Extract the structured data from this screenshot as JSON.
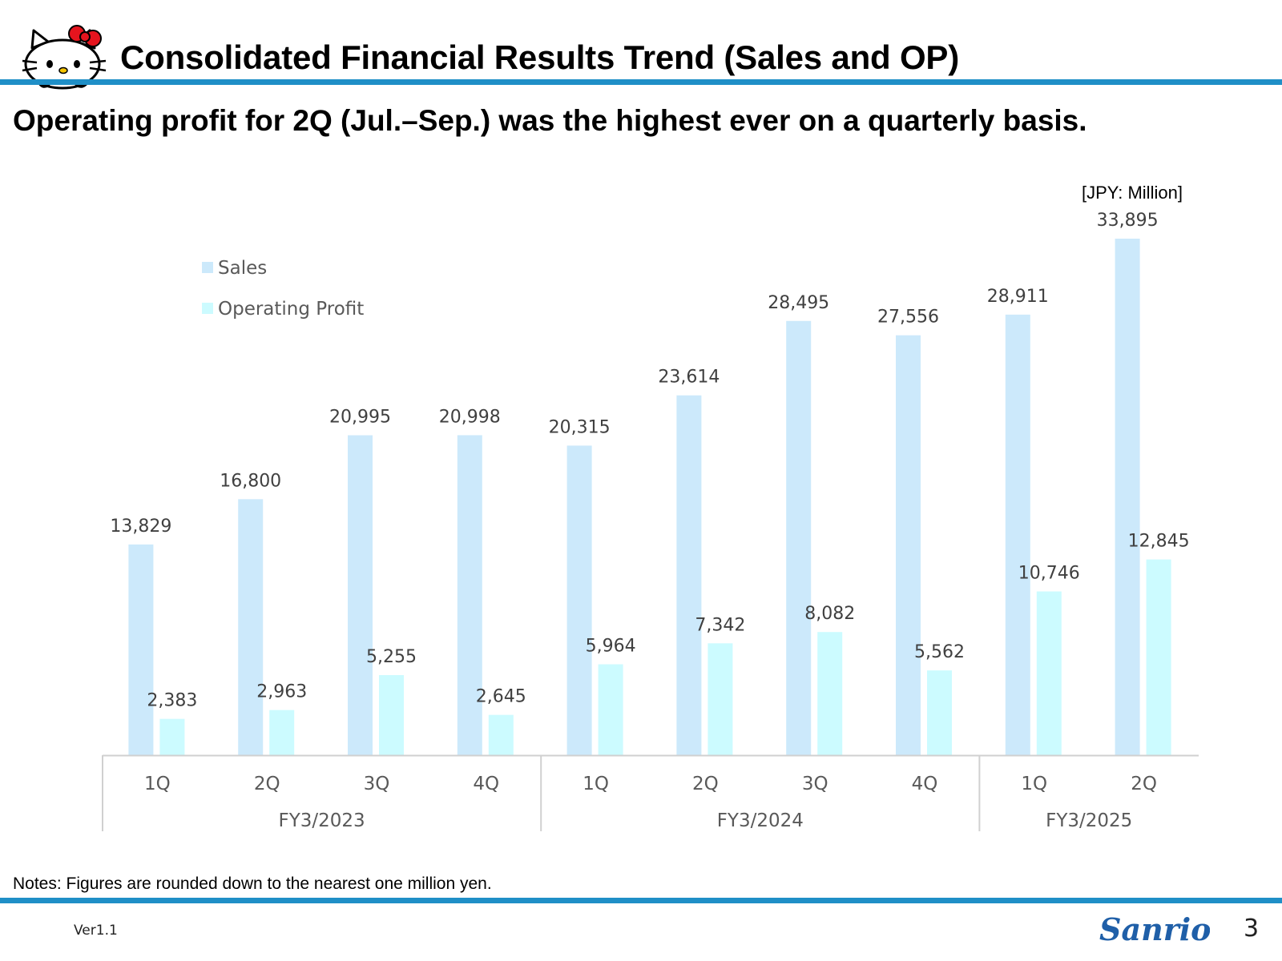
{
  "header": {
    "title": "Consolidated Financial Results Trend (Sales and OP)",
    "subtitle": "Operating profit for 2Q (Jul.–Sep.) was the highest ever on a quarterly basis.",
    "unit_label": "[JPY: Million]",
    "accent_color": "#1f8fc7"
  },
  "footer": {
    "notes": "Notes: Figures are rounded down to the nearest one million yen.",
    "version": "Ver1.1",
    "brand": "Sanrio",
    "page_number": "3"
  },
  "chart_data": {
    "type": "bar",
    "title": "",
    "xlabel": "",
    "ylabel": "",
    "ylim": [
      0,
      35000
    ],
    "grid": false,
    "legend_position": "top-left",
    "categories": [
      "1Q",
      "2Q",
      "3Q",
      "4Q",
      "1Q",
      "2Q",
      "3Q",
      "4Q",
      "1Q",
      "2Q"
    ],
    "groups": [
      {
        "label": "FY3/2023",
        "count": 4
      },
      {
        "label": "FY3/2024",
        "count": 4
      },
      {
        "label": "FY3/2025",
        "count": 2
      }
    ],
    "series": [
      {
        "name": "Sales",
        "color": "#cce9fb",
        "values": [
          13829,
          16800,
          20995,
          20998,
          20315,
          23614,
          28495,
          27556,
          28911,
          33895
        ],
        "labels": [
          "13,829",
          "16,800",
          "20,995",
          "20,998",
          "20,315",
          "23,614",
          "28,495",
          "27,556",
          "28,911",
          "33,895"
        ]
      },
      {
        "name": "Operating Profit",
        "color": "#ccfbff",
        "values": [
          2383,
          2963,
          5255,
          2645,
          5964,
          7342,
          8082,
          5562,
          10746,
          12845
        ],
        "labels": [
          "2,383",
          "2,963",
          "5,255",
          "2,645",
          "5,964",
          "7,342",
          "8,082",
          "5,562",
          "10,746",
          "12,845"
        ]
      }
    ]
  }
}
